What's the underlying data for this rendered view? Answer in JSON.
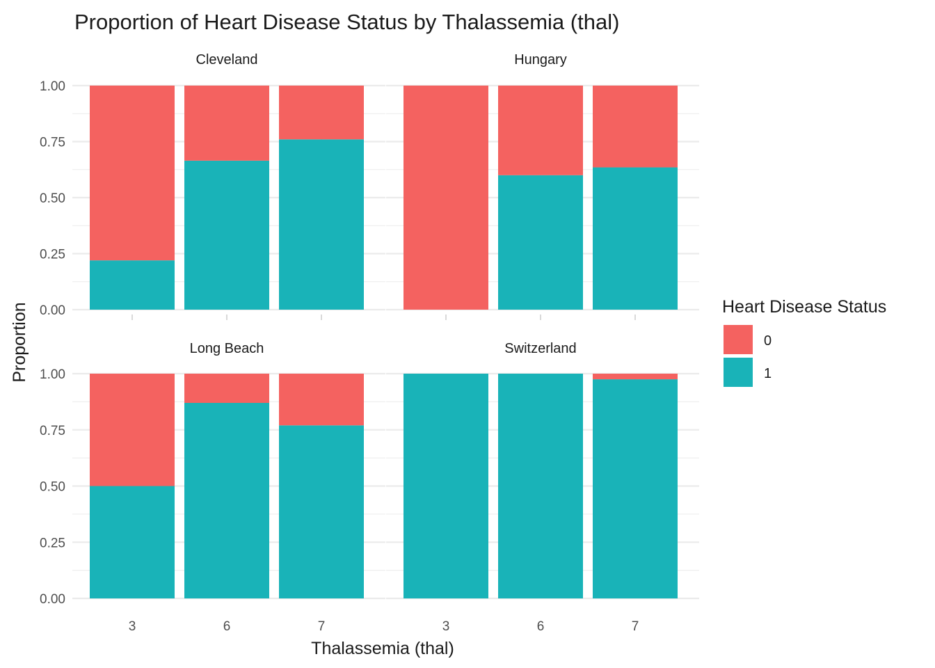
{
  "chart_data": {
    "type": "bar",
    "stacked": true,
    "title": "Proportion of Heart Disease Status by Thalassemia (thal)",
    "xlabel": "Thalassemia (thal)",
    "ylabel": "Proportion",
    "ylim": [
      0,
      1
    ],
    "yticks": [
      "0.00",
      "0.25",
      "0.50",
      "0.75",
      "1.00"
    ],
    "ytick_values": [
      0,
      0.25,
      0.5,
      0.75,
      1
    ],
    "categories": [
      "3",
      "6",
      "7"
    ],
    "grid": true,
    "legend": {
      "title": "Heart Disease Status",
      "position": "right",
      "entries": [
        {
          "name": "0",
          "color": "#F8766D"
        },
        {
          "name": "1",
          "color": "#00BFC4"
        }
      ]
    },
    "colors": {
      "0": "#F46260",
      "1": "#19B3B8"
    },
    "facets": [
      {
        "name": "Cleveland",
        "series": [
          {
            "name": "0",
            "values": [
              0.78,
              0.335,
              0.24
            ]
          },
          {
            "name": "1",
            "values": [
              0.22,
              0.665,
              0.76
            ]
          }
        ]
      },
      {
        "name": "Hungary",
        "series": [
          {
            "name": "0",
            "values": [
              1.0,
              0.4,
              0.365
            ]
          },
          {
            "name": "1",
            "values": [
              0.0,
              0.6,
              0.635
            ]
          }
        ]
      },
      {
        "name": "Long Beach",
        "series": [
          {
            "name": "0",
            "values": [
              0.5,
              0.13,
              0.23
            ]
          },
          {
            "name": "1",
            "values": [
              0.5,
              0.87,
              0.77
            ]
          }
        ]
      },
      {
        "name": "Switzerland",
        "series": [
          {
            "name": "0",
            "values": [
              0.0,
              0.0,
              0.025
            ]
          },
          {
            "name": "1",
            "values": [
              1.0,
              1.0,
              0.975
            ]
          }
        ]
      }
    ]
  }
}
